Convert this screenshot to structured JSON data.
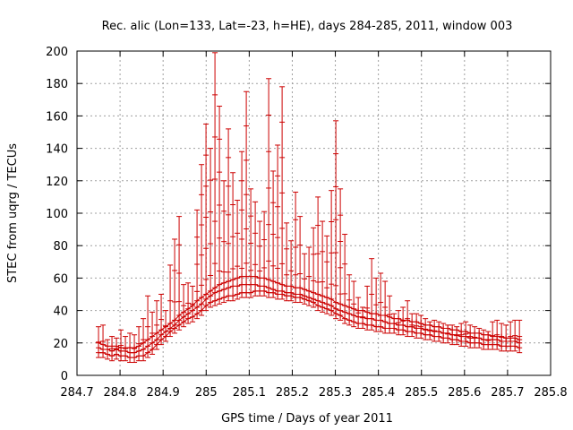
{
  "chart_data": {
    "type": "line",
    "title": "Rec. alic (Lon=133, Lat=-23, h=HE), days 284-285, 2011, window 003",
    "xlabel": "GPS time / Days of year 2011",
    "ylabel": "STEC from uqrg / TECUs",
    "xlim": [
      284.7,
      285.8
    ],
    "ylim": [
      0,
      200
    ],
    "grid": true,
    "x_ticks": [
      "284.7",
      "284.8",
      "284.9",
      "285",
      "285.1",
      "285.2",
      "285.3",
      "285.4",
      "285.5",
      "285.6",
      "285.7",
      "285.8"
    ],
    "y_ticks": [
      "0",
      "20",
      "40",
      "60",
      "80",
      "100",
      "120",
      "140",
      "160",
      "180",
      "200"
    ],
    "x_start": 284.75,
    "x_end": 285.735,
    "x_step": 0.0104,
    "series": [
      {
        "name": "lower",
        "values": [
          14,
          14,
          13,
          12,
          13,
          12,
          12,
          11,
          11,
          12,
          12,
          14,
          16,
          19,
          22,
          24,
          27,
          29,
          31,
          33,
          35,
          36,
          38,
          40,
          43,
          45,
          46,
          47,
          48,
          49,
          49,
          50,
          51,
          51,
          51,
          52,
          52,
          52,
          51,
          51,
          50,
          50,
          49,
          49,
          48,
          48,
          47,
          46,
          45,
          43,
          42,
          41,
          40,
          38,
          37,
          35,
          34,
          33,
          32,
          32,
          31,
          31,
          30,
          30,
          29,
          29,
          29,
          28,
          28,
          27,
          27,
          26,
          26,
          25,
          25,
          24,
          24,
          23,
          23,
          22,
          22,
          21,
          21,
          20,
          20,
          20,
          19,
          19,
          19,
          19,
          18,
          18,
          18,
          18,
          17
        ]
      },
      {
        "name": "middle",
        "values": [
          17,
          16,
          16,
          15,
          16,
          15,
          15,
          14,
          14,
          15,
          16,
          18,
          20,
          22,
          25,
          27,
          29,
          31,
          34,
          36,
          38,
          40,
          42,
          44,
          47,
          49,
          51,
          52,
          53,
          54,
          55,
          55,
          56,
          56,
          56,
          56,
          55,
          55,
          54,
          53,
          52,
          52,
          51,
          51,
          50,
          50,
          49,
          48,
          47,
          46,
          45,
          44,
          43,
          41,
          40,
          39,
          38,
          37,
          36,
          36,
          35,
          35,
          34,
          34,
          33,
          32,
          32,
          31,
          31,
          30,
          30,
          29,
          29,
          28,
          28,
          27,
          27,
          26,
          26,
          25,
          25,
          24,
          24,
          23,
          23,
          23,
          22,
          22,
          22,
          22,
          21,
          21,
          21,
          21,
          20
        ]
      },
      {
        "name": "upper",
        "values": [
          20,
          19,
          18,
          18,
          18,
          17,
          17,
          17,
          17,
          18,
          20,
          22,
          24,
          26,
          28,
          30,
          32,
          34,
          37,
          39,
          41,
          43,
          46,
          48,
          50,
          52,
          54,
          56,
          57,
          58,
          59,
          60,
          61,
          61,
          61,
          61,
          60,
          60,
          59,
          58,
          57,
          56,
          55,
          55,
          54,
          54,
          53,
          52,
          51,
          50,
          49,
          48,
          47,
          45,
          44,
          43,
          42,
          41,
          40,
          40,
          39,
          38,
          38,
          37,
          37,
          36,
          35,
          35,
          34,
          34,
          33,
          33,
          32,
          31,
          31,
          30,
          30,
          29,
          29,
          28,
          28,
          27,
          27,
          26,
          26,
          26,
          25,
          25,
          24,
          24,
          24,
          23,
          23,
          23,
          22
        ]
      },
      {
        "name": "error_bar_top",
        "values": [
          30,
          31,
          22,
          24,
          23,
          28,
          24,
          26,
          25,
          30,
          35,
          49,
          39,
          46,
          50,
          40,
          68,
          84,
          98,
          56,
          57,
          55,
          102,
          130,
          155,
          140,
          199,
          166,
          120,
          152,
          125,
          108,
          138,
          175,
          115,
          107,
          95,
          101,
          183,
          126,
          142,
          178,
          94,
          83,
          113,
          98,
          75,
          79,
          91,
          110,
          95,
          86,
          114,
          157,
          115,
          87,
          62,
          58,
          48,
          42,
          55,
          72,
          60,
          63,
          58,
          49,
          38,
          40,
          42,
          46,
          38,
          38,
          37,
          35,
          33,
          34,
          33,
          32,
          31,
          31,
          30,
          32,
          33,
          31,
          30,
          29,
          28,
          27,
          33,
          34,
          32,
          31,
          33,
          34,
          34
        ]
      }
    ]
  },
  "colors": {
    "series": "#cc0000",
    "grid": "#a0a0a0",
    "axis": "#000000"
  }
}
